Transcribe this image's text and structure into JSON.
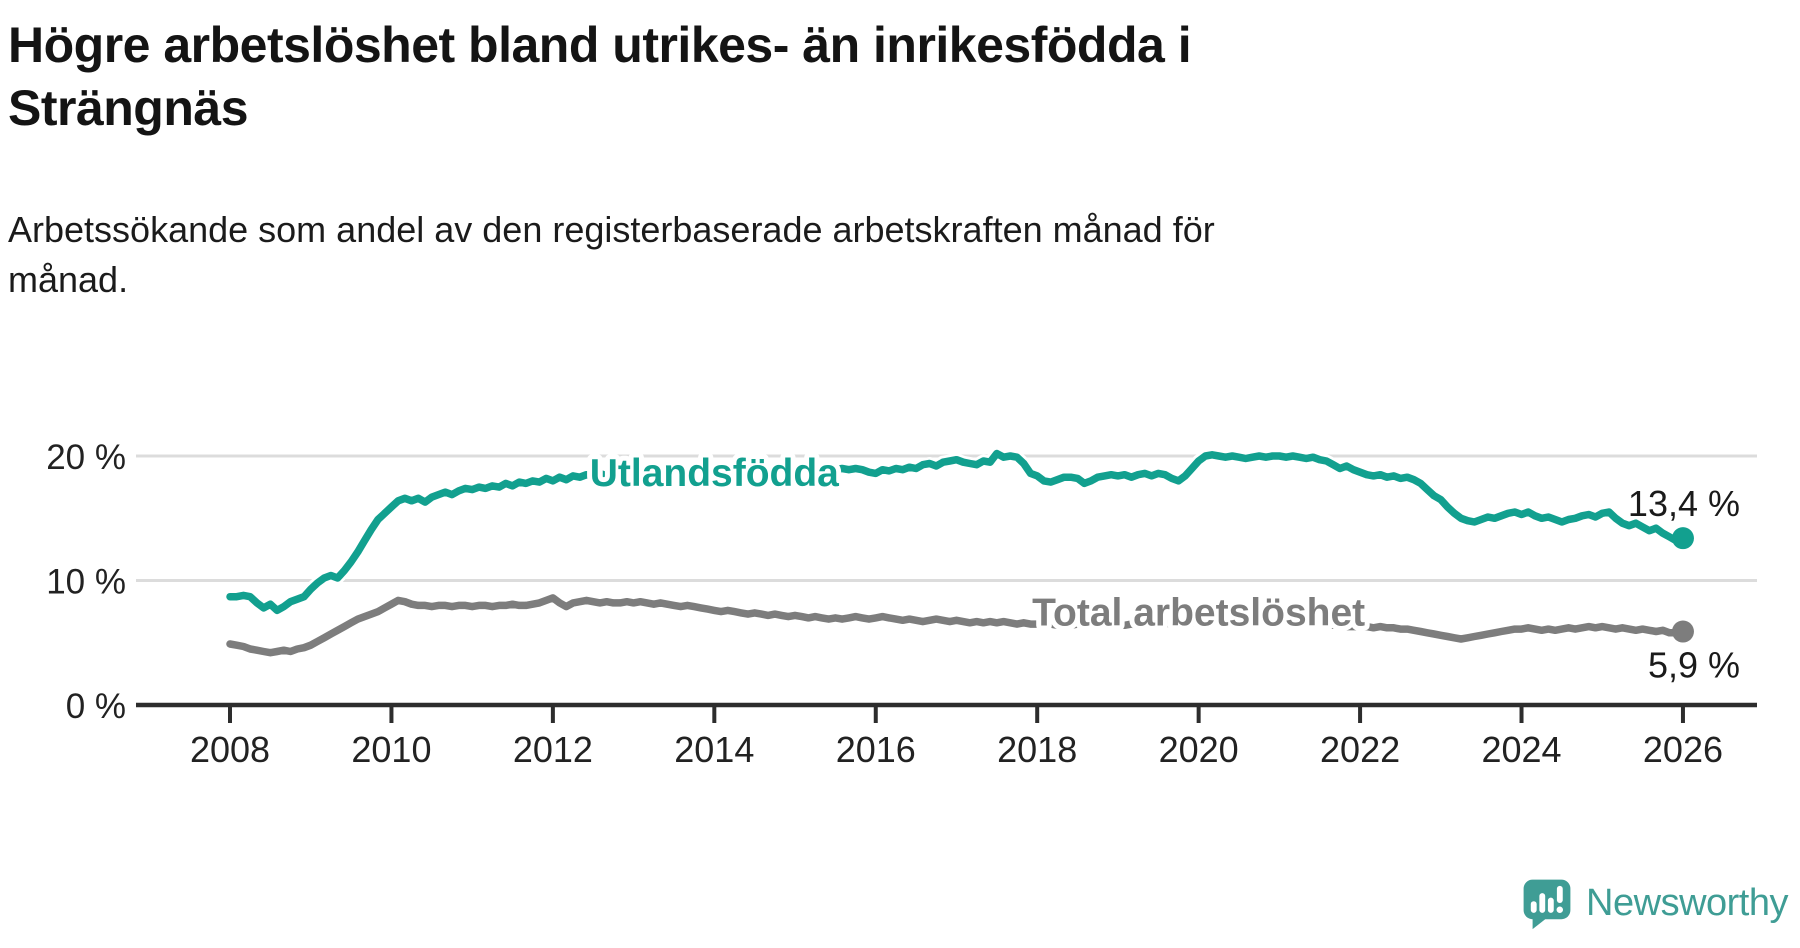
{
  "header": {
    "title": "Högre arbetslöshet bland utrikes- än inrikesfödda i Strängnäs",
    "title_lines": [
      "Högre arbetslöshet bland utrikes- än inrikesfödda i",
      "Strängnäs"
    ],
    "subtitle": "Arbetssökande som andel av den registerbaserade arbetskraften månad för månad.",
    "subtitle_lines": [
      "Arbetssökande som andel av den registerbaserade arbetskraften månad för",
      "månad."
    ]
  },
  "branding": {
    "logo_text": "Newsworthy",
    "logo_icon": "newsworthy-speech-bubble-bars-icon",
    "logo_color": "#3f9d95"
  },
  "colors": {
    "foreign_born_line": "#12a08f",
    "total_line": "#7d7d7d",
    "grid": "#dcdcdc",
    "axis": "#2d2d2d",
    "tick_text": "#222222",
    "value_text": "#1a1a1a"
  },
  "chart_data": {
    "type": "line",
    "title": "Högre arbetslöshet bland utrikes- än inrikesfödda i Strängnäs",
    "subtitle": "Arbetssökande som andel av den registerbaserade arbetskraften månad för månad.",
    "x": {
      "start_year": 2008,
      "start_month": 1,
      "step_months": 1,
      "points": 217,
      "end_year": 2026,
      "end_month": 1
    },
    "x_ticks": [
      2008,
      2010,
      2012,
      2014,
      2016,
      2018,
      2020,
      2022,
      2024,
      2026
    ],
    "y_ticks": [
      {
        "value": 0,
        "label": "0 %"
      },
      {
        "value": 10,
        "label": "10 %"
      },
      {
        "value": 20,
        "label": "20 %"
      }
    ],
    "ylim": [
      0,
      21.5
    ],
    "grid": "horizontal-only",
    "legend": "inline-labels-on-lines",
    "series": [
      {
        "name": "Utlandsfödda",
        "color": "#12a08f",
        "end_value": 13.4,
        "end_label": "13,4 %",
        "end_label_pos": "above",
        "label_anchor": {
          "x_year": 2014.0,
          "y_value": 17.6
        },
        "values": [
          8.7,
          8.7,
          8.8,
          8.7,
          8.2,
          7.8,
          8.1,
          7.6,
          7.9,
          8.3,
          8.5,
          8.7,
          9.3,
          9.8,
          10.2,
          10.4,
          10.2,
          10.8,
          11.5,
          12.3,
          13.2,
          14.1,
          14.9,
          15.4,
          15.9,
          16.4,
          16.6,
          16.4,
          16.6,
          16.3,
          16.7,
          16.9,
          17.1,
          16.9,
          17.2,
          17.4,
          17.3,
          17.5,
          17.4,
          17.6,
          17.5,
          17.8,
          17.6,
          17.9,
          17.8,
          18.0,
          17.9,
          18.2,
          18.0,
          18.3,
          18.1,
          18.4,
          18.3,
          18.5,
          18.4,
          18.6,
          18.4,
          18.5,
          18.4,
          18.5,
          18.4,
          18.5,
          18.4,
          18.6,
          18.5,
          18.6,
          18.7,
          18.6,
          18.7,
          18.6,
          18.7,
          18.8,
          18.7,
          18.8,
          18.7,
          18.9,
          18.8,
          18.9,
          18.8,
          18.9,
          19.0,
          18.9,
          18.8,
          18.9,
          18.9,
          19.0,
          18.9,
          19.0,
          19.1,
          19.0,
          18.9,
          19.0,
          18.9,
          19.0,
          18.9,
          18.7,
          18.6,
          18.9,
          18.8,
          19.0,
          18.9,
          19.1,
          19.0,
          19.3,
          19.4,
          19.2,
          19.5,
          19.6,
          19.7,
          19.5,
          19.4,
          19.3,
          19.6,
          19.5,
          20.2,
          19.9,
          20.0,
          19.9,
          19.4,
          18.6,
          18.4,
          18.0,
          17.9,
          18.1,
          18.3,
          18.3,
          18.2,
          17.8,
          18.0,
          18.3,
          18.4,
          18.5,
          18.4,
          18.5,
          18.3,
          18.5,
          18.6,
          18.4,
          18.6,
          18.5,
          18.2,
          18.0,
          18.4,
          19.0,
          19.6,
          20.0,
          20.1,
          20.0,
          19.9,
          20.0,
          19.9,
          19.8,
          19.9,
          20.0,
          19.9,
          20.0,
          20.0,
          19.9,
          20.0,
          19.9,
          19.8,
          19.9,
          19.7,
          19.6,
          19.3,
          19.0,
          19.2,
          18.9,
          18.7,
          18.5,
          18.4,
          18.5,
          18.3,
          18.4,
          18.2,
          18.3,
          18.1,
          17.8,
          17.3,
          16.8,
          16.5,
          15.9,
          15.4,
          15.0,
          14.8,
          14.7,
          14.9,
          15.1,
          15.0,
          15.2,
          15.4,
          15.5,
          15.3,
          15.5,
          15.2,
          15.0,
          15.1,
          14.9,
          14.7,
          14.9,
          15.0,
          15.2,
          15.3,
          15.1,
          15.4,
          15.5,
          15.0,
          14.6,
          14.4,
          14.6,
          14.3,
          14.0,
          14.2,
          13.8,
          13.5,
          13.2,
          13.4
        ]
      },
      {
        "name": "Total arbetslöshet",
        "color": "#7d7d7d",
        "end_value": 5.9,
        "end_label": "5,9 %",
        "end_label_pos": "below",
        "label_anchor": {
          "x_year": 2020.0,
          "y_value": 6.4
        },
        "values": [
          4.9,
          4.8,
          4.7,
          4.5,
          4.4,
          4.3,
          4.2,
          4.3,
          4.4,
          4.3,
          4.5,
          4.6,
          4.8,
          5.1,
          5.4,
          5.7,
          6.0,
          6.3,
          6.6,
          6.9,
          7.1,
          7.3,
          7.5,
          7.8,
          8.1,
          8.4,
          8.3,
          8.1,
          8.0,
          8.0,
          7.9,
          8.0,
          8.0,
          7.9,
          8.0,
          8.0,
          7.9,
          8.0,
          8.0,
          7.9,
          8.0,
          8.0,
          8.1,
          8.0,
          8.0,
          8.1,
          8.2,
          8.4,
          8.6,
          8.2,
          7.9,
          8.2,
          8.3,
          8.4,
          8.3,
          8.2,
          8.3,
          8.2,
          8.2,
          8.3,
          8.2,
          8.3,
          8.2,
          8.1,
          8.2,
          8.1,
          8.0,
          7.9,
          8.0,
          7.9,
          7.8,
          7.7,
          7.6,
          7.5,
          7.6,
          7.5,
          7.4,
          7.3,
          7.4,
          7.3,
          7.2,
          7.3,
          7.2,
          7.1,
          7.2,
          7.1,
          7.0,
          7.1,
          7.0,
          6.9,
          7.0,
          6.9,
          7.0,
          7.1,
          7.0,
          6.9,
          7.0,
          7.1,
          7.0,
          6.9,
          6.8,
          6.9,
          6.8,
          6.7,
          6.8,
          6.9,
          6.8,
          6.7,
          6.8,
          6.7,
          6.6,
          6.7,
          6.6,
          6.7,
          6.6,
          6.7,
          6.6,
          6.5,
          6.6,
          6.5,
          6.5,
          6.4,
          6.5,
          6.4,
          6.5,
          6.4,
          6.5,
          6.4,
          6.5,
          6.4,
          6.5,
          6.4,
          6.5,
          6.4,
          6.5,
          6.4,
          6.5,
          6.5,
          6.4,
          6.5,
          6.6,
          6.5,
          6.6,
          6.6,
          6.7,
          6.9,
          7.3,
          7.6,
          7.7,
          7.8,
          7.7,
          7.6,
          7.5,
          7.4,
          7.3,
          7.2,
          7.1,
          7.0,
          6.9,
          6.8,
          6.7,
          6.6,
          6.5,
          6.5,
          6.4,
          6.4,
          6.3,
          6.3,
          6.3,
          6.3,
          6.2,
          6.3,
          6.2,
          6.2,
          6.1,
          6.1,
          6.0,
          5.9,
          5.8,
          5.7,
          5.6,
          5.5,
          5.4,
          5.3,
          5.4,
          5.5,
          5.6,
          5.7,
          5.8,
          5.9,
          6.0,
          6.1,
          6.1,
          6.2,
          6.1,
          6.0,
          6.1,
          6.0,
          6.1,
          6.2,
          6.1,
          6.2,
          6.3,
          6.2,
          6.3,
          6.2,
          6.1,
          6.2,
          6.1,
          6.0,
          6.1,
          6.0,
          5.9,
          6.0,
          5.8,
          5.8,
          5.9
        ]
      }
    ]
  }
}
